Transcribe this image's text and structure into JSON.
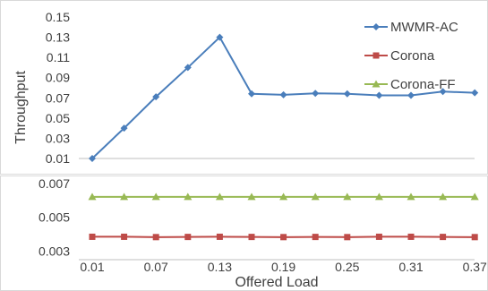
{
  "chart_data": {
    "type": "line",
    "categories": [
      "0.01",
      "0.04",
      "0.07",
      "0.10",
      "0.13",
      "0.16",
      "0.19",
      "0.22",
      "0.25",
      "0.28",
      "0.31",
      "0.34",
      "0.37"
    ],
    "x_tick_labels": [
      "0.01",
      "0.07",
      "0.13",
      "0.19",
      "0.25",
      "0.31",
      "0.37"
    ],
    "xlabel": "Offered Load",
    "ylabel": "Throughput",
    "grid": false,
    "legend_position": "top-right",
    "panels": [
      {
        "name": "upper",
        "ylim": [
          0.01,
          0.15
        ],
        "y_ticks": [
          "0.15",
          "0.13",
          "0.11",
          "0.09",
          "0.07",
          "0.05",
          "0.03",
          "0.01"
        ],
        "series": [
          {
            "name": "MWMR-AC",
            "color": "#4a7ebb",
            "marker": "diamond",
            "values": [
              0.01,
              0.04,
              0.071,
              0.1,
              0.13,
              0.074,
              0.073,
              0.0745,
              0.074,
              0.0725,
              0.0725,
              0.0762,
              0.075
            ]
          }
        ]
      },
      {
        "name": "lower",
        "ylim": [
          0.0025,
          0.0072
        ],
        "y_ticks": [
          "0.007",
          "0.005",
          "0.003"
        ],
        "series": [
          {
            "name": "Corona",
            "color": "#be4b48",
            "marker": "square",
            "values": [
              0.00385,
              0.00385,
              0.00383,
              0.00384,
              0.00385,
              0.00384,
              0.00383,
              0.00384,
              0.00383,
              0.00385,
              0.00385,
              0.00384,
              0.00383
            ]
          },
          {
            "name": "Corona-FF",
            "color": "#98b954",
            "marker": "triangle",
            "values": [
              0.0062,
              0.0062,
              0.0062,
              0.0062,
              0.0062,
              0.0062,
              0.0062,
              0.0062,
              0.0062,
              0.0062,
              0.0062,
              0.0062,
              0.0062
            ]
          }
        ]
      }
    ],
    "legend": [
      "MWMR-AC",
      "Corona",
      "Corona-FF"
    ]
  }
}
